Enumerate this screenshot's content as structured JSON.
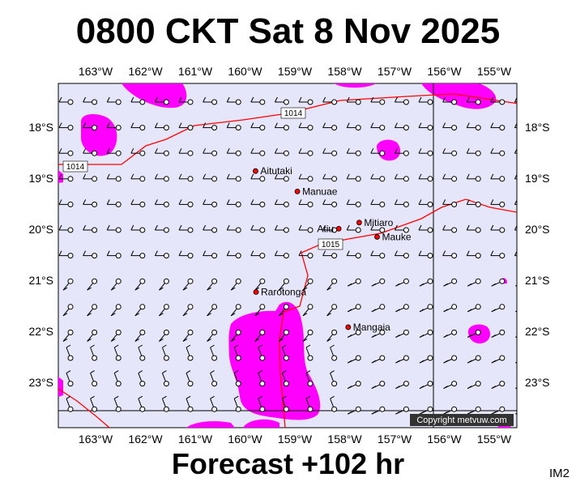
{
  "title": "0800 CKT Sat 8 Nov 2025",
  "footer": "Forecast +102 hr",
  "code": "IM2",
  "copyright": "Copyright metvuw.com",
  "lon_labels": [
    "163°W",
    "162°W",
    "161°W",
    "160°W",
    "159°W",
    "158°W",
    "157°W",
    "156°W",
    "155°W"
  ],
  "lat_labels": [
    "18°S",
    "19°S",
    "20°S",
    "21°S",
    "22°S",
    "23°S"
  ],
  "isobar_labels": [
    "1014",
    "1014",
    "1015"
  ],
  "places": [
    {
      "name": "Aitutaki",
      "lat": -18.86,
      "lon": -159.79,
      "label_side": "right"
    },
    {
      "name": "Manuae",
      "lat": -19.26,
      "lon": -158.95,
      "label_side": "right"
    },
    {
      "name": "Atiu",
      "lat": -19.99,
      "lon": -158.12,
      "label_side": "left"
    },
    {
      "name": "Mitiaro",
      "lat": -19.87,
      "lon": -157.71,
      "label_side": "right"
    },
    {
      "name": "Mauke",
      "lat": -20.15,
      "lon": -157.35,
      "label_side": "right"
    },
    {
      "name": "Rarotonga",
      "lat": -21.23,
      "lon": -159.78,
      "label_side": "right"
    },
    {
      "name": "Mangaia",
      "lat": -21.92,
      "lon": -157.93,
      "label_side": "right"
    }
  ],
  "colors": {
    "sea": "#e6e6fa",
    "precip": "#ff00ff",
    "isobar": "#ff0000",
    "grid": "#000000"
  }
}
